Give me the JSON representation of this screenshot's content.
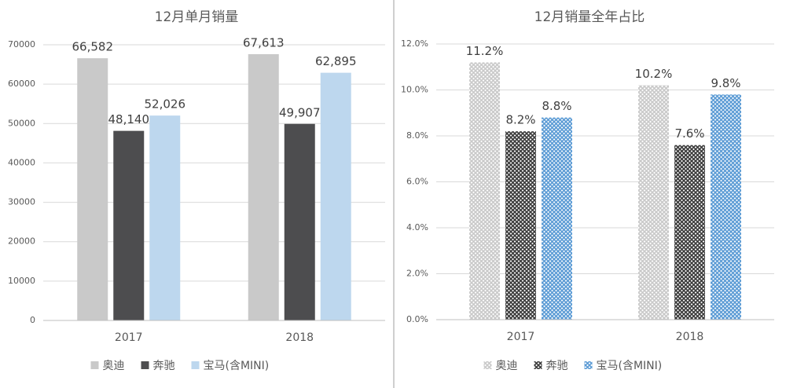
{
  "chart_data": [
    {
      "type": "bar",
      "title": "12月单月销量",
      "categories": [
        "2017",
        "2018"
      ],
      "series": [
        {
          "name": "奥迪",
          "color": "#c9c9c9",
          "values": [
            66582,
            67613
          ],
          "value_labels": [
            "66,582",
            "67,613"
          ]
        },
        {
          "name": "奔驰",
          "color": "#4d4d4f",
          "values": [
            48140,
            49907
          ],
          "value_labels": [
            "48,140",
            "49,907"
          ]
        },
        {
          "name": "宝马(含MINI)",
          "color": "#bdd7ee",
          "values": [
            52026,
            62895
          ],
          "value_labels": [
            "52,026",
            "62,895"
          ]
        }
      ],
      "ylim": [
        0,
        70000
      ],
      "yticks": [
        0,
        10000,
        20000,
        30000,
        40000,
        50000,
        60000,
        70000
      ],
      "grid": true,
      "legend": "bottom"
    },
    {
      "type": "bar",
      "title": "12月销量全年占比",
      "categories": [
        "2017",
        "2018"
      ],
      "series": [
        {
          "name": "奥迪",
          "color": "#c9c9c9",
          "values": [
            11.2,
            10.2
          ],
          "value_labels": [
            "11.2%",
            "10.2%"
          ]
        },
        {
          "name": "奔驰",
          "color": "#3a3a3a",
          "values": [
            8.2,
            7.6
          ],
          "value_labels": [
            "8.2%",
            "7.6%"
          ]
        },
        {
          "name": "宝马(含MINI)",
          "color": "#5b9bd5",
          "values": [
            8.8,
            9.8
          ],
          "value_labels": [
            "8.8%",
            "9.8%"
          ]
        }
      ],
      "ylim": [
        0,
        12
      ],
      "yticks": [
        {
          "value": 0,
          "label": "0.0%"
        },
        {
          "value": 2,
          "label": "2.0%"
        },
        {
          "value": 4,
          "label": "4.0%"
        },
        {
          "value": 6,
          "label": "6.0%"
        },
        {
          "value": 8,
          "label": "8.0%"
        },
        {
          "value": 10,
          "label": "10.0%"
        },
        {
          "value": 12,
          "label": "12.0%"
        }
      ],
      "grid": true,
      "legend": "bottom",
      "pattern": true
    }
  ]
}
